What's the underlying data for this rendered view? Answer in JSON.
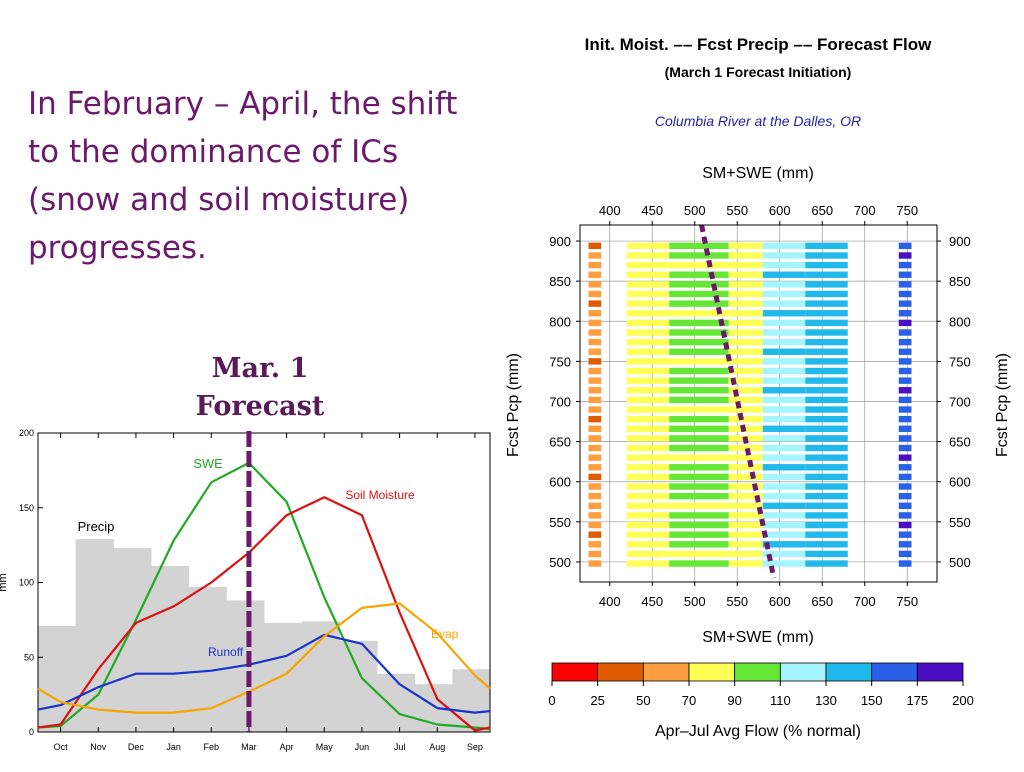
{
  "slide": {
    "headline": "In February – April, the shift to the dominance of ICs (snow and soil moisture) progresses.",
    "forecast_label_line1": "Mar. 1",
    "forecast_label_line2": "Forecast"
  },
  "colors": {
    "headline": "#6b1a6b",
    "forecast_marker": "#6b1a6b",
    "precip_bars": "#d3d3d3",
    "swe": "#22aa22",
    "soil_moisture": "#dd1111",
    "runoff": "#1a33cc",
    "evap": "#f5a500"
  },
  "chart_data": [
    {
      "type": "line",
      "title": "",
      "xlabel": "",
      "ylabel": "mm",
      "ylim": [
        0,
        200
      ],
      "yticks": [
        0,
        50,
        100,
        150,
        200
      ],
      "categories": [
        "Oct",
        "Nov",
        "Dec",
        "Jan",
        "Feb",
        "Mar",
        "Apr",
        "May",
        "Jun",
        "Jul",
        "Aug",
        "Sep"
      ],
      "annotations": {
        "marker_month": "Mar"
      },
      "bars": {
        "name": "Precip",
        "values": [
          71,
          129,
          123,
          111,
          97,
          88,
          73,
          74,
          61,
          39,
          32,
          42
        ]
      },
      "series": [
        {
          "name": "SWE",
          "x": [
            -0.6,
            0,
            1,
            2,
            3,
            4,
            5,
            6,
            7,
            8,
            9,
            10,
            11,
            11.6
          ],
          "values": [
            3,
            4,
            25,
            75,
            128,
            167,
            180,
            154,
            90,
            36,
            12,
            5,
            3,
            2
          ]
        },
        {
          "name": "Soil Moisture",
          "x": [
            -0.6,
            0,
            1,
            2,
            3,
            4,
            5,
            6,
            7,
            8,
            9,
            10,
            11,
            11.6
          ],
          "values": [
            3,
            5,
            42,
            73,
            84,
            100,
            120,
            145,
            157,
            145,
            80,
            22,
            1,
            3
          ]
        },
        {
          "name": "Runoff",
          "x": [
            -0.6,
            0,
            1,
            2,
            3,
            4,
            5,
            6,
            7,
            8,
            9,
            10,
            11,
            11.6
          ],
          "values": [
            15,
            18,
            30,
            39,
            39,
            41,
            45,
            51,
            65,
            59,
            32,
            16,
            13,
            14
          ]
        },
        {
          "name": "Evap",
          "x": [
            -0.6,
            0,
            1,
            2,
            3,
            4,
            5,
            6,
            7,
            8,
            9,
            10,
            11,
            11.6
          ],
          "values": [
            29,
            20,
            15,
            13,
            13,
            16,
            27,
            39,
            64,
            83,
            86,
            66,
            38,
            29
          ]
        }
      ],
      "legend_text": {
        "swe": "SWE",
        "soil": "Soil Moisture",
        "precip": "Precip",
        "runoff": "Runoff",
        "evap": "Evap"
      }
    },
    {
      "type": "heatmap",
      "title": "Init. Moist. –– Fcst Precip –– Forecast Flow",
      "subtitle": "(March 1 Forecast Initiation)",
      "location": "Columbia River at the Dalles, OR",
      "xlabel": "SM+SWE (mm)",
      "ylabel": "Fcst Pcp (mm)",
      "xlim": [
        365,
        785
      ],
      "ylim": [
        475,
        920
      ],
      "xticks": [
        400,
        450,
        500,
        550,
        600,
        650,
        700,
        750
      ],
      "yticks": [
        500,
        550,
        600,
        650,
        700,
        750,
        800,
        850,
        900
      ],
      "colorbar": {
        "label": "Apr–Jul Avg Flow (% normal)",
        "bounds": [
          0,
          25,
          50,
          70,
          90,
          110,
          130,
          150,
          175,
          200
        ],
        "colors": [
          "#ff0000",
          "#e05a00",
          "#ff9e40",
          "#ffff55",
          "#66e635",
          "#a5f5ff",
          "#21b9ec",
          "#2a5fe8",
          "#4a0fc4"
        ]
      },
      "data_description": "Points are drawn at each forecast-precip level in SM+SWE bands: ~380 orange, 420-470 yellow, 470-570 yellow/green, 570-630 light blue, 630-680 blue, ~745 blue. Values approximate.",
      "bands": [
        {
          "x": [
            375,
            390
          ],
          "cls": 2
        },
        {
          "x": [
            420,
            470
          ],
          "cls": 3
        },
        {
          "x": [
            470,
            540
          ],
          "cls": 4
        },
        {
          "x": [
            540,
            580
          ],
          "cls": 3
        },
        {
          "x": [
            580,
            630
          ],
          "cls": 5
        },
        {
          "x": [
            630,
            680
          ],
          "cls": 6
        },
        {
          "x": [
            740,
            755
          ],
          "cls": 7
        }
      ],
      "divider_line": {
        "x": [
          508,
          593
        ],
        "y": [
          920,
          480
        ]
      }
    }
  ]
}
